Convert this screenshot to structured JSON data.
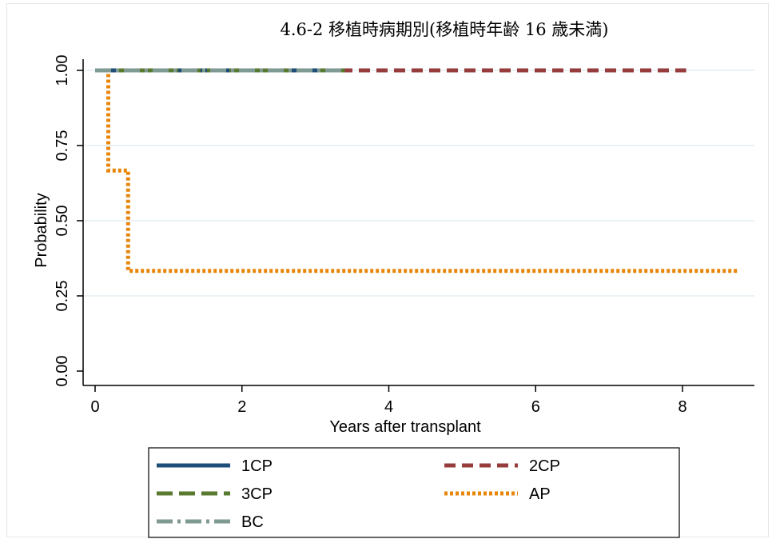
{
  "chart_data": {
    "type": "line",
    "step": true,
    "title": "4.6-2 移植時病期別(移植時年齢 16 歳未満)",
    "xlabel": "Years after transplant",
    "ylabel": "Probability",
    "xlim": [
      0,
      8.8
    ],
    "ylim": [
      0,
      1
    ],
    "xticks": [
      0,
      2,
      4,
      6,
      8
    ],
    "xtick_labels": [
      "0",
      "2",
      "4",
      "6",
      "8"
    ],
    "yticks": [
      0,
      0.25,
      0.5,
      0.75,
      1
    ],
    "ytick_labels": [
      "0.00",
      "0.25",
      "0.50",
      "0.75",
      "1.00"
    ],
    "grid": true,
    "legend_position": "bottom",
    "series": [
      {
        "name": "1CP",
        "color": "#1f4e79",
        "style": "solid",
        "x": [
          0,
          3.4
        ],
        "y": [
          1,
          1
        ]
      },
      {
        "name": "2CP",
        "color": "#963c3c",
        "style": "dash",
        "x": [
          0,
          8.05
        ],
        "y": [
          1,
          1
        ]
      },
      {
        "name": "3CP",
        "color": "#5a7a32",
        "style": "longdash",
        "x": [
          0,
          3.4
        ],
        "y": [
          1,
          1
        ]
      },
      {
        "name": "AP",
        "color": "#e8860a",
        "style": "dot",
        "x": [
          0,
          0.18,
          0.18,
          0.45,
          0.45,
          8.75
        ],
        "y": [
          1,
          1,
          0.667,
          0.667,
          0.333,
          0.333
        ]
      },
      {
        "name": "BC",
        "color": "#7f9a92",
        "style": "dashdot",
        "x": [
          0,
          3.4
        ],
        "y": [
          1,
          1
        ]
      }
    ]
  }
}
